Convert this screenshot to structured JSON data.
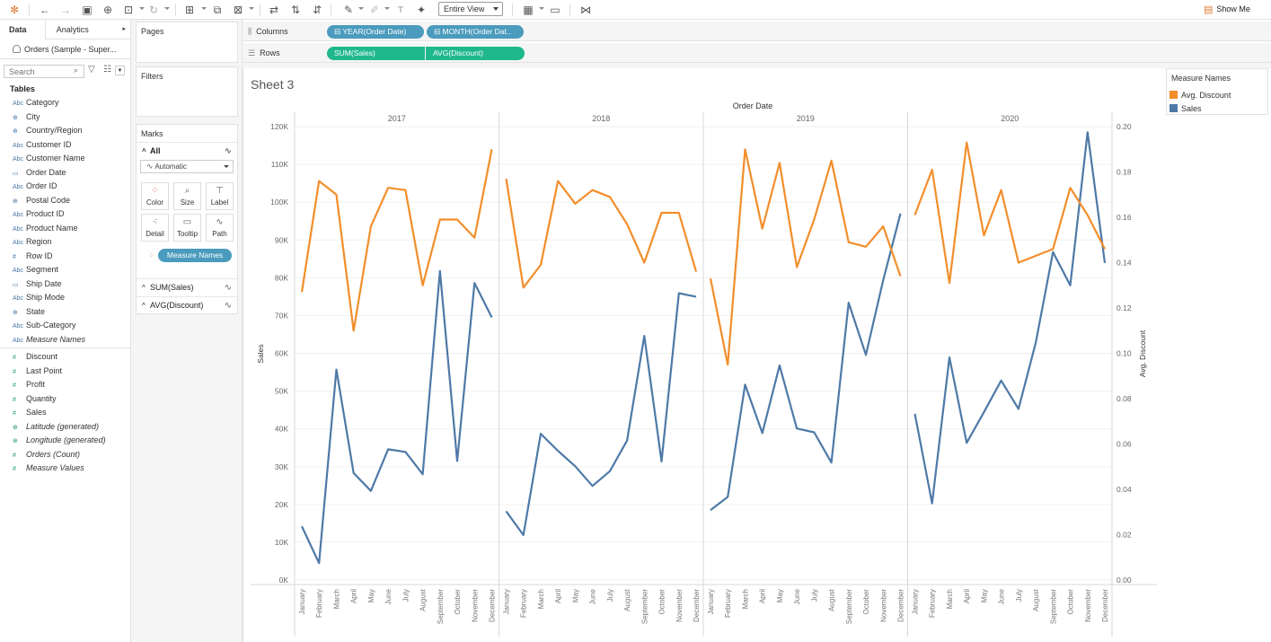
{
  "toolbar": {
    "view_select": "Entire View",
    "show_me": "Show Me"
  },
  "data_pane": {
    "tabs": [
      "Data",
      "Analytics"
    ],
    "datasource": "Orders (Sample - Super...",
    "search_placeholder": "Search",
    "tables_label": "Tables",
    "dimensions": [
      {
        "name": "Category",
        "type": "Abc"
      },
      {
        "name": "City",
        "type": "geo"
      },
      {
        "name": "Country/Region",
        "type": "geo"
      },
      {
        "name": "Customer ID",
        "type": "Abc"
      },
      {
        "name": "Customer Name",
        "type": "Abc"
      },
      {
        "name": "Order Date",
        "type": "date"
      },
      {
        "name": "Order ID",
        "type": "Abc"
      },
      {
        "name": "Postal Code",
        "type": "geo"
      },
      {
        "name": "Product ID",
        "type": "Abc"
      },
      {
        "name": "Product Name",
        "type": "Abc"
      },
      {
        "name": "Region",
        "type": "Abc"
      },
      {
        "name": "Row ID",
        "type": "#"
      },
      {
        "name": "Segment",
        "type": "Abc"
      },
      {
        "name": "Ship Date",
        "type": "date"
      },
      {
        "name": "Ship Mode",
        "type": "Abc"
      },
      {
        "name": "State",
        "type": "geo"
      },
      {
        "name": "Sub-Category",
        "type": "Abc"
      },
      {
        "name": "Measure Names",
        "type": "Abc",
        "italic": true
      }
    ],
    "measures": [
      {
        "name": "Discount",
        "type": "#"
      },
      {
        "name": "Last Point",
        "type": "#"
      },
      {
        "name": "Profit",
        "type": "#"
      },
      {
        "name": "Quantity",
        "type": "#"
      },
      {
        "name": "Sales",
        "type": "#"
      },
      {
        "name": "Latitude (generated)",
        "type": "geo",
        "italic": true
      },
      {
        "name": "Longitude (generated)",
        "type": "geo",
        "italic": true
      },
      {
        "name": "Orders (Count)",
        "type": "#",
        "italic": true
      },
      {
        "name": "Measure Values",
        "type": "#",
        "italic": true
      }
    ]
  },
  "cards": {
    "pages": "Pages",
    "filters": "Filters",
    "marks": "Marks",
    "marks_all": "All",
    "mark_type": "Automatic",
    "mark_buttons": [
      "Color",
      "Size",
      "Label",
      "Detail",
      "Tooltip",
      "Path"
    ],
    "color_pill": "Measure Names",
    "marks_sales": "SUM(Sales)",
    "marks_discount": "AVG(Discount)"
  },
  "shelves": {
    "columns_label": "Columns",
    "rows_label": "Rows",
    "columns_pills": [
      "YEAR(Order Date)",
      "MONTH(Order Dat.."
    ],
    "rows_pills": [
      "SUM(Sales)",
      "AVG(Discount)"
    ]
  },
  "sheet": {
    "title": "Sheet 3"
  },
  "legend": {
    "title": "Measure Names",
    "items": [
      {
        "name": "Avg. Discount",
        "color": "#f28e2b"
      },
      {
        "name": "Sales",
        "color": "#4e79a7"
      }
    ]
  },
  "chart_data": {
    "type": "line",
    "title": "Order Date",
    "years": [
      "2017",
      "2018",
      "2019",
      "2020"
    ],
    "months": [
      "January",
      "February",
      "March",
      "April",
      "May",
      "June",
      "July",
      "August",
      "September",
      "October",
      "November",
      "December"
    ],
    "y_left": {
      "label": "Sales",
      "min": 0,
      "max": 120000,
      "ticks": [
        "0K",
        "10K",
        "20K",
        "30K",
        "40K",
        "50K",
        "60K",
        "70K",
        "80K",
        "90K",
        "100K",
        "110K",
        "120K"
      ]
    },
    "y_right": {
      "label": "Avg. Discount",
      "min": 0,
      "max": 0.2,
      "ticks": [
        "0.00",
        "0.02",
        "0.04",
        "0.06",
        "0.08",
        "0.10",
        "0.12",
        "0.14",
        "0.16",
        "0.18",
        "0.20"
      ]
    },
    "series": [
      {
        "name": "Sales",
        "axis": "left",
        "color": "#4e79a7",
        "values": [
          [
            14200,
            4500,
            55700,
            28300,
            23600,
            34600,
            33900,
            28000,
            81800,
            31500,
            78600,
            69500
          ],
          [
            18200,
            11900,
            38700,
            34200,
            30100,
            24900,
            28800,
            36900,
            64600,
            31400,
            75900,
            75000
          ],
          [
            18500,
            22000,
            51700,
            38900,
            56800,
            40100,
            39100,
            31100,
            73400,
            59600,
            79400,
            97000
          ],
          [
            44000,
            20300,
            58900,
            36300,
            44400,
            52800,
            45300,
            62800,
            86800,
            78000,
            118500,
            83900
          ]
        ]
      },
      {
        "name": "Avg. Discount",
        "axis": "right",
        "color": "#f28e2b",
        "values": [
          [
            0.127,
            0.176,
            0.17,
            0.11,
            0.156,
            0.173,
            0.172,
            0.13,
            0.159,
            0.159,
            0.151,
            0.19
          ],
          [
            0.177,
            0.129,
            0.139,
            0.176,
            0.166,
            0.172,
            0.169,
            0.157,
            0.14,
            0.162,
            0.162,
            0.136
          ],
          [
            0.133,
            0.095,
            0.19,
            0.155,
            0.184,
            0.138,
            0.159,
            0.185,
            0.149,
            0.147,
            0.156,
            0.134
          ],
          [
            0.161,
            0.181,
            0.131,
            0.193,
            0.152,
            0.172,
            0.14,
            0.143,
            0.146,
            0.173,
            0.161,
            0.146
          ]
        ]
      }
    ]
  }
}
